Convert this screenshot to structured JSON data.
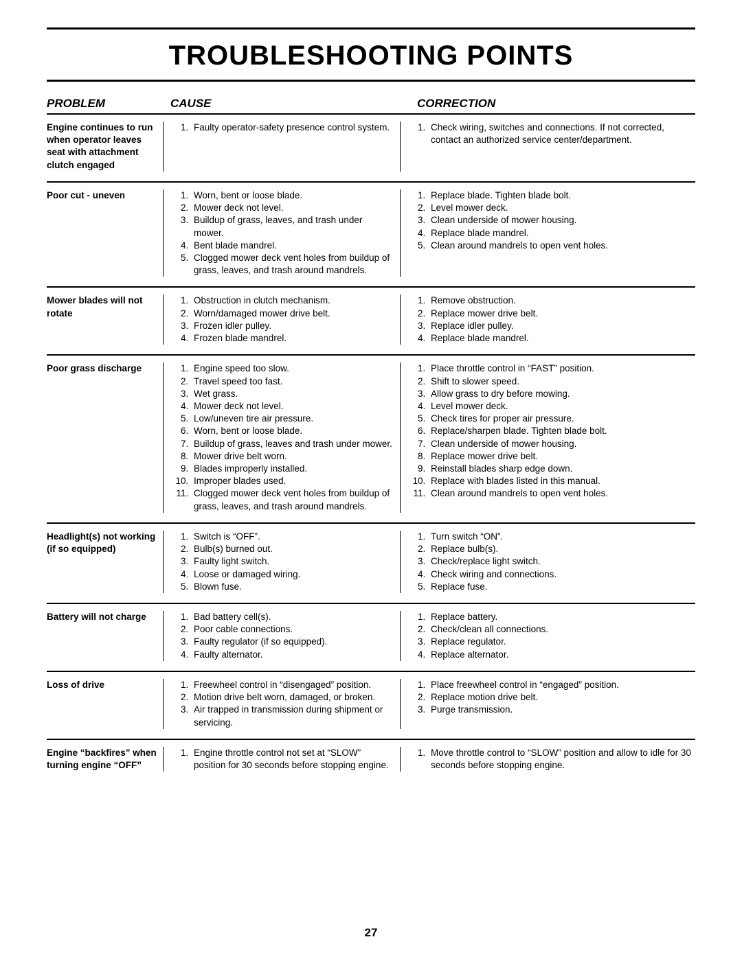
{
  "title": "TROUBLESHOOTING POINTS",
  "page_number": "27",
  "colors": {
    "text": "#000000",
    "background": "#ffffff",
    "rule": "#000000"
  },
  "typography": {
    "title_fontsize_pt": 30,
    "header_fontsize_pt": 13,
    "body_fontsize_pt": 10,
    "page_num_fontsize_pt": 13
  },
  "columns": {
    "problem": "PROBLEM",
    "cause": "CAUSE",
    "correction": "CORRECTION"
  },
  "rows": [
    {
      "problem": "Engine continues to run when operator leaves seat with attachment clutch engaged",
      "causes": [
        "Faulty operator-safety presence control system."
      ],
      "corrections": [
        "Check wiring, switches and connections.  If not corrected, contact an authorized service center/department."
      ]
    },
    {
      "problem": "Poor cut - uneven",
      "causes": [
        "Worn, bent or loose blade.",
        "Mower deck not level.",
        "Buildup of grass, leaves, and trash under mower.",
        "Bent blade mandrel.",
        "Clogged mower deck vent holes from buildup of grass, leaves, and trash around mandrels."
      ],
      "corrections": [
        "Replace blade.  Tighten blade bolt.",
        "Level mower deck.",
        "Clean underside of mower housing.",
        "Replace blade mandrel.",
        "Clean around mandrels to open vent holes."
      ]
    },
    {
      "problem": "Mower blades will not rotate",
      "causes": [
        "Obstruction in clutch mechanism.",
        "Worn/damaged mower drive belt.",
        "Frozen idler pulley.",
        "Frozen blade mandrel."
      ],
      "corrections": [
        "Remove obstruction.",
        "Replace mower drive belt.",
        "Replace idler pulley.",
        "Replace blade mandrel."
      ]
    },
    {
      "problem": "Poor grass discharge",
      "causes": [
        "Engine speed too slow.",
        "Travel speed too fast.",
        "Wet grass.",
        "Mower deck not level.",
        "Low/uneven tire air pressure.",
        "Worn, bent or loose blade.",
        "Buildup of grass, leaves and trash under mower.",
        "Mower drive belt worn.",
        "Blades improperly installed.",
        "Improper blades used.",
        "Clogged mower deck vent holes from buildup of grass, leaves, and trash around mandrels."
      ],
      "corrections": [
        "Place throttle control in “FAST” position.",
        "Shift to slower speed.",
        "Allow grass to dry before mowing.",
        "Level mower deck.",
        "Check tires for proper air pressure.",
        "Replace/sharpen blade.  Tighten blade bolt.",
        "Clean underside of mower housing.",
        "Replace mower drive belt.",
        "Reinstall blades sharp edge down.",
        "Replace with blades listed in this manual.",
        "Clean around mandrels to open vent holes."
      ]
    },
    {
      "problem": "Headlight(s) not working (if so equipped)",
      "causes": [
        "Switch is “OFF”.",
        "Bulb(s) burned out.",
        "Faulty light switch.",
        "Loose or damaged wiring.",
        "Blown fuse."
      ],
      "corrections": [
        "Turn switch “ON”.",
        "Replace bulb(s).",
        "Check/replace light switch.",
        "Check wiring and connections.",
        "Replace fuse."
      ]
    },
    {
      "problem": "Battery will not charge",
      "causes": [
        "Bad battery cell(s).",
        "Poor cable connections.",
        "Faulty regulator (if so equipped).",
        "Faulty alternator."
      ],
      "corrections": [
        "Replace battery.",
        "Check/clean all connections.",
        "Replace regulator.",
        "Replace alternator."
      ]
    },
    {
      "problem": "Loss of drive",
      "causes": [
        "Freewheel control in “disengaged” position.",
        "Motion drive belt worn, damaged, or broken.",
        "Air trapped in transmission during shipment or servicing."
      ],
      "corrections": [
        "Place freewheel control in “engaged” position.",
        "Replace motion drive belt.",
        "Purge transmission."
      ]
    },
    {
      "problem": "Engine “backfires” when turning engine “OFF”",
      "causes": [
        "Engine throttle control not set at “SLOW” position for 30 seconds before stopping engine."
      ],
      "corrections": [
        "Move throttle control to “SLOW” position and allow to idle for 30 seconds before stopping engine."
      ]
    }
  ]
}
